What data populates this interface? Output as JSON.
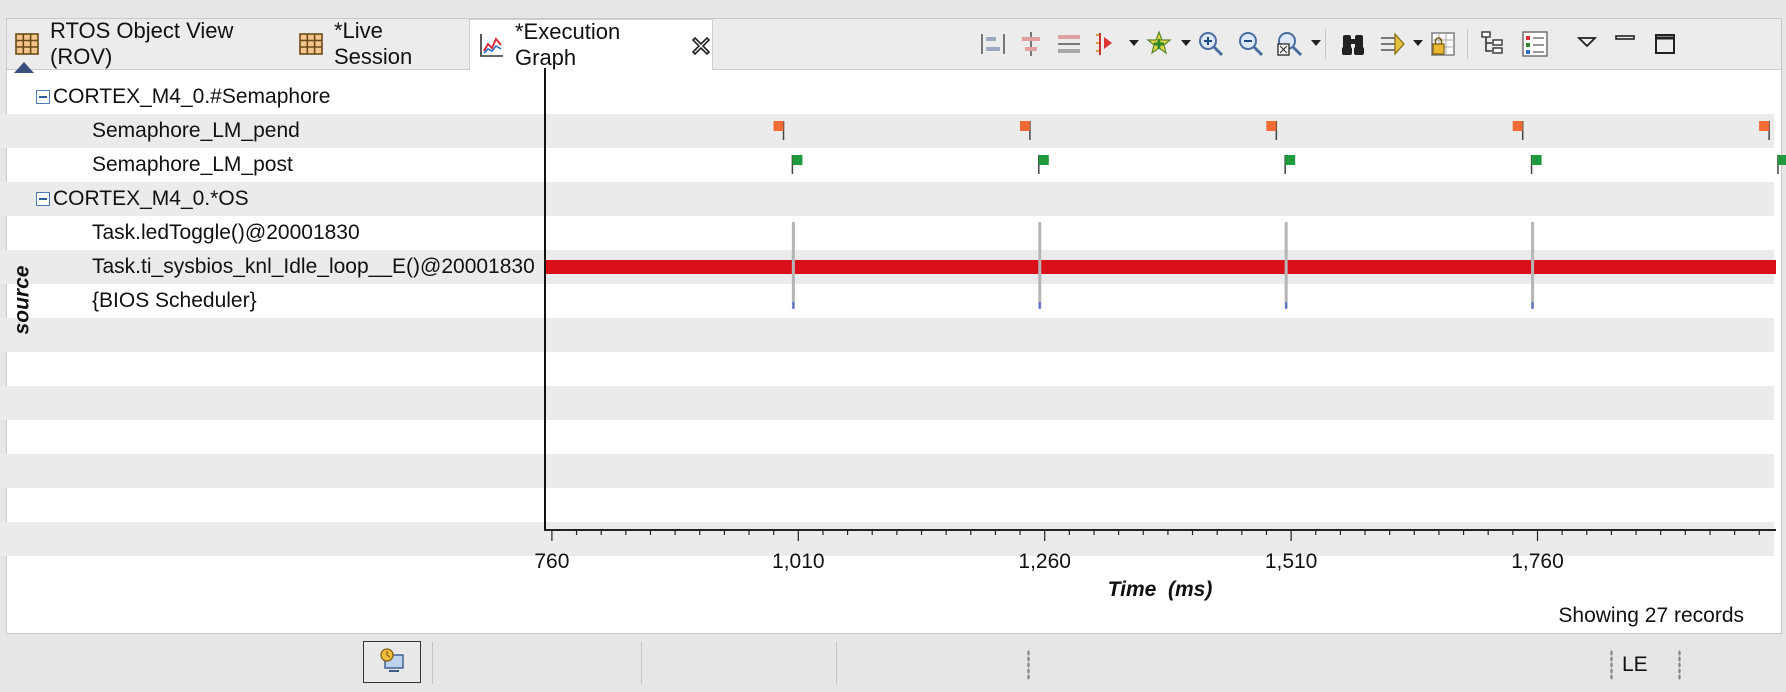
{
  "tabs": [
    {
      "label": "RTOS Object View (ROV)",
      "icon": "table-icon"
    },
    {
      "label": "*Live Session",
      "icon": "table-icon"
    },
    {
      "label": "*Execution Graph",
      "icon": "graph-icon",
      "active": true
    }
  ],
  "toolbar": {
    "icons": [
      "align-left-icon",
      "align-center-icon",
      "align-distribute-icon",
      "marker-icon",
      "add-measurement-icon",
      "zoom-in-icon",
      "zoom-out-icon",
      "zoom-fit-icon",
      "find-icon",
      "sync-icon",
      "lock-icon",
      "tree-icon",
      "legend-icon",
      "view-menu-icon",
      "minimize-icon",
      "maximize-icon"
    ]
  },
  "y_axis_label": "source",
  "rows": [
    {
      "label": "CORTEX_M4_0.#Semaphore",
      "group": true
    },
    {
      "label": "Semaphore_LM_pend",
      "group": false
    },
    {
      "label": "Semaphore_LM_post",
      "group": false
    },
    {
      "label": "CORTEX_M4_0.*OS",
      "group": true
    },
    {
      "label": "Task.ledToggle()@20001830",
      "group": false
    },
    {
      "label": "Task.ti_sysbios_knl_Idle_loop__E()@20001830",
      "group": false
    },
    {
      "label": "{BIOS Scheduler}",
      "group": false
    }
  ],
  "chart_data": {
    "type": "timeline",
    "xlabel": "Time  (ms)",
    "x_ticks": [
      "760",
      "1,010",
      "1,260",
      "1,510",
      "1,760"
    ],
    "x_tick_values": [
      760,
      1010,
      1260,
      1510,
      1760
    ],
    "xlim": [
      754,
      2002
    ],
    "pend_events_ms": [
      995,
      1245,
      1495,
      1745,
      1995
    ],
    "post_events_ms": [
      1004,
      1254,
      1504,
      1754,
      2004
    ],
    "task_switch_ms": [
      1005,
      1255,
      1505,
      1755,
      2005
    ],
    "idle_bar_ms": [
      754,
      2002
    ],
    "colors": {
      "pend": "#f26b35",
      "post": "#1f9a3c",
      "idle": "#d9101a",
      "task": "#b5b5b5"
    }
  },
  "records_text": "Showing 27 records",
  "status": {
    "mode": "LE"
  }
}
